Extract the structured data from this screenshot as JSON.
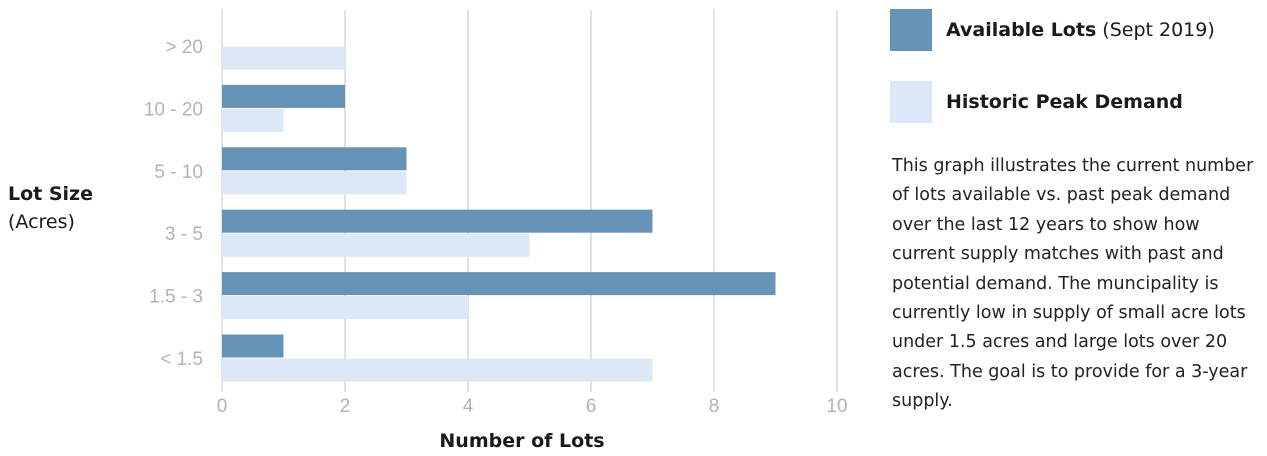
{
  "chart_data": {
    "type": "bar",
    "orientation": "horizontal",
    "categories": [
      "> 20",
      "10 - 20",
      "5 - 10",
      "3 - 5",
      "1.5 - 3",
      "< 1.5"
    ],
    "series": [
      {
        "name": "Available Lots",
        "values": [
          0,
          2,
          3,
          7,
          9,
          1
        ],
        "color": "#6594b8"
      },
      {
        "name": "Historic Peak Demand",
        "values": [
          2,
          1,
          3,
          5,
          4,
          7
        ],
        "color": "#dce8f6"
      }
    ],
    "xlim": [
      0,
      10
    ],
    "xticks": [
      "0",
      "2",
      "4",
      "6",
      "8",
      "10"
    ],
    "xlabel": "Number of Lots",
    "ylabel": "Lot Size",
    "ylabel_sub": "(Acres)",
    "grid": "vertical",
    "legend_position": "right"
  },
  "legend": {
    "items": [
      {
        "label_bold": "Available Lots",
        "label_rest": " (Sept 2019)",
        "color": "#6594b8"
      },
      {
        "label_bold": "Historic Peak Demand",
        "label_rest": "",
        "color": "#dce8f6"
      }
    ]
  },
  "description": "This graph illustrates the current number of lots available vs. past peak demand over the last 12 years to show how current supply matches with past and potential demand. The muncipality is currently low in supply of small acre lots under 1.5 acres and large lots over 20 acres. The goal is to provide for a 3-year supply."
}
